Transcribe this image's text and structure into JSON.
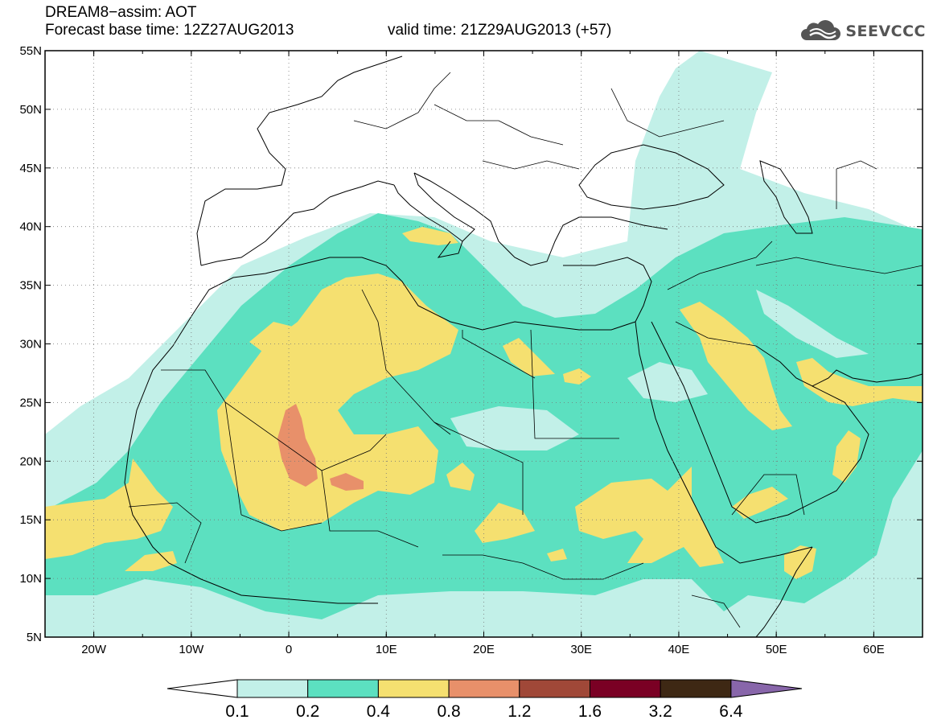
{
  "title": {
    "line1": "DREAM8−assim: AOT",
    "base_time": "Forecast base time: 12Z27AUG2013",
    "valid_time": "valid time: 21Z29AUG2013 (+57)"
  },
  "logo": {
    "text": "SEEVCCC",
    "icon": "cloud-icon"
  },
  "map": {
    "lon_range": [
      -25,
      65
    ],
    "lat_range": [
      5,
      55
    ],
    "lon_ticks": [
      {
        "value": -20,
        "label": "20W"
      },
      {
        "value": -10,
        "label": "10W"
      },
      {
        "value": 0,
        "label": "0"
      },
      {
        "value": 10,
        "label": "10E"
      },
      {
        "value": 20,
        "label": "20E"
      },
      {
        "value": 30,
        "label": "30E"
      },
      {
        "value": 40,
        "label": "40E"
      },
      {
        "value": 50,
        "label": "50E"
      },
      {
        "value": 60,
        "label": "60E"
      }
    ],
    "lat_ticks": [
      {
        "value": 55,
        "label": "55N"
      },
      {
        "value": 50,
        "label": "50N"
      },
      {
        "value": 45,
        "label": "45N"
      },
      {
        "value": 40,
        "label": "40N"
      },
      {
        "value": 35,
        "label": "35N"
      },
      {
        "value": 30,
        "label": "30N"
      },
      {
        "value": 25,
        "label": "25N"
      },
      {
        "value": 20,
        "label": "20N"
      },
      {
        "value": 15,
        "label": "15N"
      },
      {
        "value": 10,
        "label": "10N"
      },
      {
        "value": 5,
        "label": "5N"
      }
    ],
    "gridlines": "dotted"
  },
  "colorbar": {
    "levels": [
      "0.1",
      "0.2",
      "0.4",
      "0.8",
      "1.2",
      "1.6",
      "3.2",
      "6.4"
    ],
    "colors": [
      "#ffffff",
      "#c2f0e8",
      "#5ce0c0",
      "#f5e070",
      "#e8906a",
      "#a04838",
      "#7a0024",
      "#3e2814",
      "#8866aa"
    ]
  }
}
